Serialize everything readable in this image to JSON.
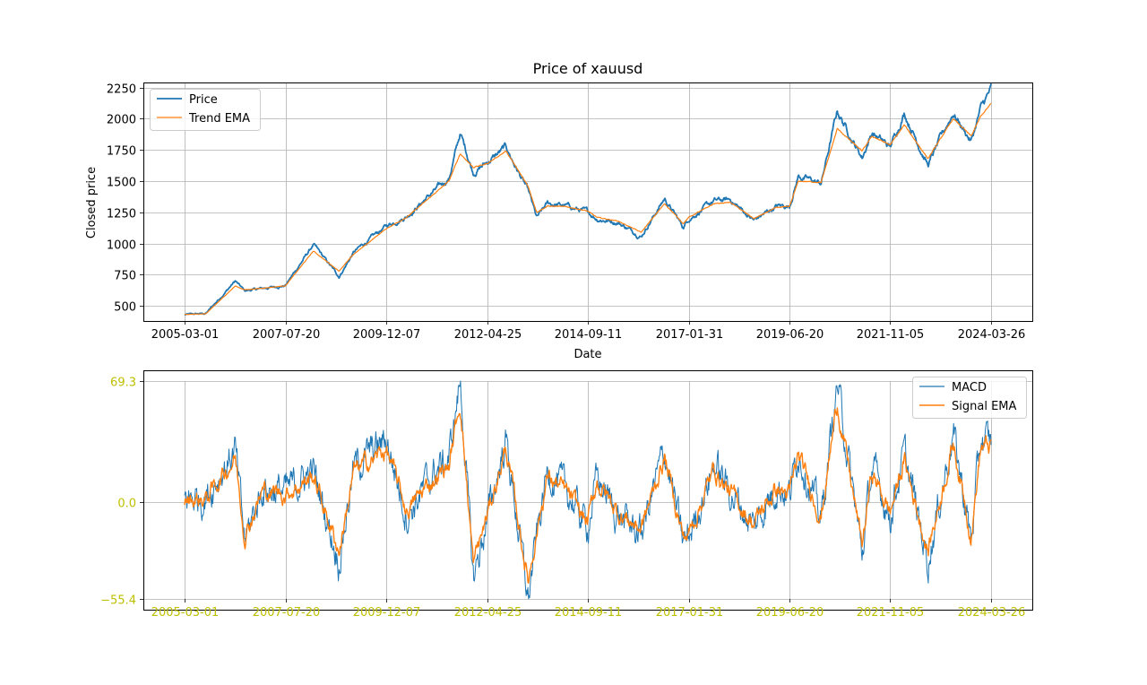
{
  "chart_data": [
    {
      "type": "line",
      "title": "Price of xauusd",
      "xlabel": "Date",
      "ylabel": "Closed price",
      "ylim": [
        380,
        2290
      ],
      "yticks": [
        500,
        750,
        1000,
        1250,
        1500,
        1750,
        2000,
        2250
      ],
      "xticks": [
        "2005-03-01",
        "2007-07-20",
        "2009-12-07",
        "2012-04-25",
        "2014-09-11",
        "2017-01-31",
        "2019-06-20",
        "2021-11-05",
        "2024-03-26"
      ],
      "grid": true,
      "legend": "top-left",
      "anchors": {
        "x": [
          "2005-03-01",
          "2005-09-01",
          "2006-05-12",
          "2006-08-01",
          "2007-01-01",
          "2007-07-20",
          "2008-03-17",
          "2008-10-24",
          "2009-03-01",
          "2009-12-07",
          "2010-06-01",
          "2011-01-01",
          "2011-06-01",
          "2011-09-06",
          "2011-12-29",
          "2012-04-25",
          "2012-10-05",
          "2013-04-15",
          "2013-06-28",
          "2013-10-01",
          "2014-03-15",
          "2014-09-11",
          "2014-12-01",
          "2015-06-01",
          "2015-12-17",
          "2016-07-06",
          "2016-12-15",
          "2017-01-31",
          "2017-09-08",
          "2018-01-25",
          "2018-08-16",
          "2019-03-01",
          "2019-06-20",
          "2019-09-04",
          "2020-03-19",
          "2020-08-06",
          "2021-03-08",
          "2021-06-01",
          "2021-11-05",
          "2022-03-08",
          "2022-09-28",
          "2023-05-04",
          "2023-10-06",
          "2023-12-28",
          "2024-03-26"
        ],
        "price": [
          430,
          440,
          700,
          620,
          640,
          665,
          990,
          735,
          930,
          1140,
          1220,
          1400,
          1520,
          1880,
          1570,
          1650,
          1770,
          1420,
          1200,
          1320,
          1300,
          1250,
          1200,
          1170,
          1060,
          1360,
          1130,
          1200,
          1340,
          1350,
          1185,
          1300,
          1300,
          1540,
          1480,
          2060,
          1690,
          1890,
          1770,
          2050,
          1630,
          2050,
          1820,
          2080,
          2235
        ],
        "ema": [
          432,
          438,
          660,
          630,
          642,
          662,
          940,
          780,
          915,
          1120,
          1210,
          1380,
          1500,
          1720,
          1610,
          1640,
          1740,
          1460,
          1250,
          1300,
          1295,
          1260,
          1210,
          1180,
          1090,
          1320,
          1160,
          1210,
          1320,
          1330,
          1200,
          1290,
          1295,
          1500,
          1490,
          1920,
          1740,
          1860,
          1790,
          1950,
          1680,
          2000,
          1860,
          2020,
          2120
        ]
      },
      "series": [
        {
          "name": "Price",
          "color": "#1f77b4"
        },
        {
          "name": "Trend EMA",
          "color": "#ff7f0e"
        }
      ]
    },
    {
      "type": "line",
      "ylim": [
        -55.4,
        69.3
      ],
      "yticks": [
        69.3,
        0.0,
        -55.4
      ],
      "ytick_labels": [
        "69.3",
        "0.0",
        "−55.4"
      ],
      "tick_color": "#bfbf00",
      "xticks": [
        "2005-03-01",
        "2007-07-20",
        "2009-12-07",
        "2012-04-25",
        "2014-09-11",
        "2017-01-31",
        "2019-06-20",
        "2021-11-05",
        "2024-03-26"
      ],
      "grid": true,
      "legend": "top-right",
      "anchors": {
        "x": [
          "2005-03-01",
          "2005-09-01",
          "2006-05-12",
          "2006-08-01",
          "2007-01-01",
          "2007-07-20",
          "2008-03-17",
          "2008-10-24",
          "2009-03-01",
          "2009-12-07",
          "2010-06-01",
          "2011-01-01",
          "2011-06-01",
          "2011-09-06",
          "2011-12-29",
          "2012-04-25",
          "2012-10-05",
          "2013-04-15",
          "2013-06-28",
          "2013-10-01",
          "2014-03-15",
          "2014-09-11",
          "2014-12-01",
          "2015-06-01",
          "2015-12-17",
          "2016-07-06",
          "2016-12-15",
          "2017-01-31",
          "2017-09-08",
          "2018-01-25",
          "2018-08-16",
          "2019-03-01",
          "2019-06-20",
          "2019-09-04",
          "2020-03-19",
          "2020-08-06",
          "2021-03-08",
          "2021-06-01",
          "2021-11-05",
          "2022-03-08",
          "2022-09-28",
          "2023-05-04",
          "2023-10-06",
          "2023-12-28",
          "2024-03-26"
        ],
        "macd": [
          2,
          3,
          30,
          -22,
          8,
          6,
          18,
          -34,
          20,
          36,
          -8,
          15,
          25,
          69.3,
          -44,
          -10,
          36,
          -55.4,
          -20,
          18,
          6,
          -14,
          14,
          -8,
          -18,
          30,
          -24,
          -20,
          22,
          6,
          -14,
          10,
          4,
          30,
          -10,
          68,
          -30,
          20,
          -8,
          28,
          -34,
          40,
          -22,
          36,
          34
        ],
        "signal": [
          1,
          2,
          26,
          -18,
          6,
          5,
          15,
          -28,
          17,
          30,
          -5,
          12,
          21,
          58,
          -36,
          -8,
          31,
          -45,
          -16,
          15,
          5,
          -12,
          12,
          -6,
          -15,
          26,
          -20,
          -18,
          19,
          5,
          -12,
          8,
          4,
          26,
          -8,
          57,
          -25,
          17,
          -6,
          24,
          -28,
          34,
          -18,
          31,
          32
        ]
      },
      "series": [
        {
          "name": "MACD",
          "color": "#1f77b4"
        },
        {
          "name": "Signal EMA",
          "color": "#ff7f0e"
        }
      ]
    }
  ]
}
